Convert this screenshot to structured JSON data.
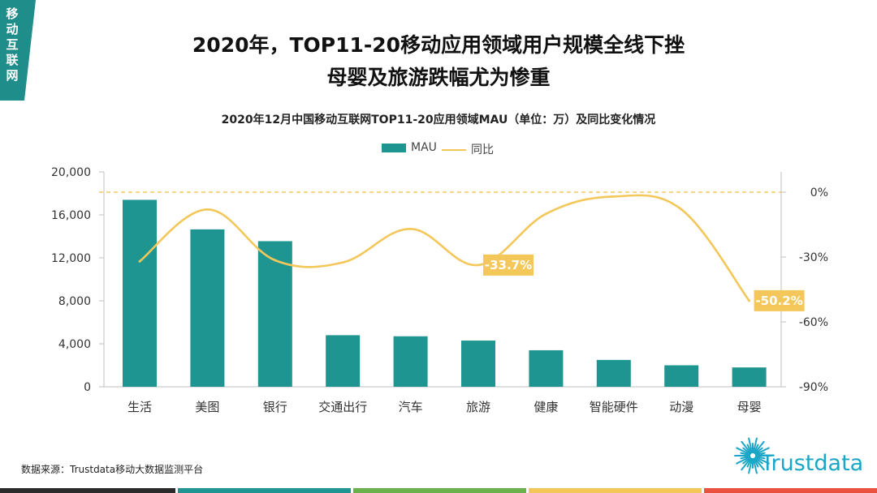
{
  "corner_label": [
    "移",
    "动",
    "互",
    "联",
    "网"
  ],
  "headline": {
    "line1": "2020年，TOP11-20移动应用领域用户规模全线下挫",
    "line2": "母婴及旅游跌幅尤为惨重"
  },
  "chart_data": {
    "type": "bar+line",
    "title": "2020年12月中国移动互联网TOP11-20应用领域MAU（单位：万）及同比变化情况",
    "categories": [
      "生活",
      "美图",
      "银行",
      "交通出行",
      "汽车",
      "旅游",
      "健康",
      "智能硬件",
      "动漫",
      "母婴"
    ],
    "series": [
      {
        "name": "MAU",
        "type": "bar",
        "axis": "left",
        "color": "#1f9591",
        "values": [
          17400,
          14650,
          13550,
          4800,
          4700,
          4300,
          3400,
          2500,
          2000,
          1800
        ]
      },
      {
        "name": "同比",
        "type": "line",
        "axis": "right",
        "color": "#f3c75a",
        "values": [
          -32,
          -8,
          -31.5,
          -32.5,
          -17,
          -33.7,
          -10,
          -2,
          -8,
          -50.2
        ]
      }
    ],
    "left_axis": {
      "min": 0,
      "max": 20000,
      "ticks": [
        "0",
        "4,000",
        "8,000",
        "12,000",
        "16,000",
        "20,000"
      ],
      "values": [
        0,
        4000,
        8000,
        12000,
        16000,
        20000
      ]
    },
    "right_axis": {
      "min": -90,
      "max": 0,
      "ticks": [
        "0%",
        "-30%",
        "-60%",
        "-90%"
      ],
      "values": [
        0,
        -30,
        -60,
        -90
      ]
    },
    "reference_line": {
      "axis": "right",
      "value": 0,
      "style": "dashed",
      "color": "#f3c75a"
    },
    "annotations": [
      {
        "category": "旅游",
        "text": "-33.7%"
      },
      {
        "category": "母婴",
        "text": "-50.2%"
      }
    ],
    "legend_position": "top-center",
    "grid": false
  },
  "legend": {
    "bar": "MAU",
    "line": "同比"
  },
  "footnote": "数据来源：Trustdata移动大数据监测平台",
  "logo_text": "Trustdata",
  "bottom_colors": [
    "#2b2b2b",
    "#1f9591",
    "#6ab04c",
    "#f3c75a",
    "#e8523f"
  ]
}
